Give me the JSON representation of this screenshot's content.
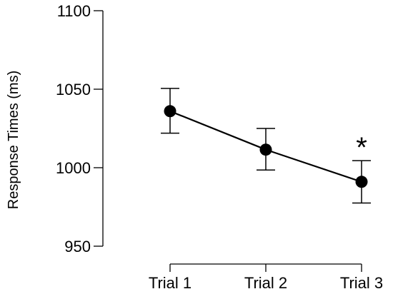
{
  "chart_data": {
    "type": "line",
    "title": "",
    "xlabel": "",
    "ylabel": "Response Times (ms)",
    "categories": [
      "Trial 1",
      "Trial 2",
      "Trial 3"
    ],
    "series": [
      {
        "values": [
          1036,
          1011.5,
          991
        ],
        "error_low": [
          1022,
          998.5,
          977.5
        ],
        "error_high": [
          1050.5,
          1025,
          1004.5
        ]
      }
    ],
    "ylim": [
      950,
      1100
    ],
    "yticks": [
      950,
      1000,
      1050,
      1100
    ],
    "grid": false,
    "legend": "none",
    "annotations": [
      {
        "text": "*",
        "category": "Trial 3"
      }
    ],
    "colors": {
      "line": "#000000",
      "marker": "#000000"
    }
  }
}
